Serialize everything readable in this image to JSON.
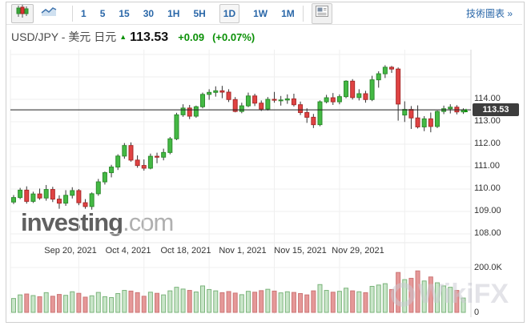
{
  "toolbar": {
    "chart_type_buttons": [
      {
        "icon": "candlestick-icon",
        "selected": true
      },
      {
        "icon": "line-chart-icon",
        "selected": false
      }
    ],
    "timeframes": [
      {
        "label": "1",
        "selected": false
      },
      {
        "label": "5",
        "selected": false
      },
      {
        "label": "15",
        "selected": false
      },
      {
        "label": "30",
        "selected": false
      },
      {
        "label": "1H",
        "selected": false
      },
      {
        "label": "5H",
        "selected": false
      },
      {
        "label": "1D",
        "selected": true
      },
      {
        "label": "1W",
        "selected": false
      },
      {
        "label": "1M",
        "selected": false
      }
    ],
    "news_icon": "news-panel-icon",
    "link_label": "技術圖表 »"
  },
  "header": {
    "symbol": "USD/JPY - 美元 日元",
    "direction": "up",
    "price": "113.53",
    "change": "+0.09",
    "change_pct": "(+0.07%)"
  },
  "watermarks": {
    "main_bold": "investing",
    "main_light": ".com",
    "corner": "WikiFX"
  },
  "chart_data": {
    "type": "candlestick",
    "symbol": "USD/JPY",
    "timeframe": "1D",
    "last_price": 113.53,
    "last_price_label": "113.53",
    "y_axis": {
      "ticks": [
        114,
        113,
        112,
        111,
        110,
        109,
        108
      ],
      "labels": [
        "114.00",
        "113.00",
        "112.00",
        "111.00",
        "110.00",
        "109.00",
        "108.00"
      ],
      "range_hint": [
        107.5,
        116.2
      ],
      "grid": true
    },
    "x_axis": {
      "ticks": [
        "Sep 20, 2021",
        "Oct 4, 2021",
        "Oct 18, 2021",
        "Nov 1, 2021",
        "Nov 15, 2021",
        "Nov 29, 2021"
      ]
    },
    "volume_axis": {
      "ticks": [
        {
          "label": "200.0K",
          "value": 200
        },
        {
          "label": "0",
          "value": 0
        }
      ]
    },
    "colors": {
      "up_fill": "#44b944",
      "up_stroke": "#2d8c2d",
      "down_fill": "#e04343",
      "down_stroke": "#aa2b2b",
      "wick": "#333333",
      "vol_up_fill": "#c9e5c9",
      "vol_up_stroke": "#7bb47b",
      "vol_down_fill": "#e59898",
      "vol_down_stroke": "#cc7676",
      "last_price_line": "#222222",
      "grid": "#efefef",
      "accent_blue": "#2a67a8",
      "accent_green": "#0a9006"
    },
    "candles": [
      [
        "Sep 6, 2021",
        109.42,
        109.73,
        109.33,
        109.62,
        62
      ],
      [
        "Sep 7, 2021",
        109.62,
        110.05,
        109.55,
        109.95,
        78
      ],
      [
        "Sep 8, 2021",
        109.95,
        110.12,
        109.35,
        109.45,
        82
      ],
      [
        "Sep 9, 2021",
        109.45,
        109.88,
        109.38,
        109.78,
        75
      ],
      [
        "Sep 10, 2021",
        109.78,
        110.02,
        109.52,
        109.6,
        70
      ],
      [
        "Sep 13, 2021",
        109.6,
        110.18,
        109.48,
        109.98,
        88
      ],
      [
        "Sep 14, 2021",
        109.98,
        110.1,
        109.42,
        109.55,
        72
      ],
      [
        "Sep 15, 2021",
        109.55,
        109.72,
        109.12,
        109.37,
        80
      ],
      [
        "Sep 16, 2021",
        109.37,
        109.95,
        109.25,
        109.72,
        76
      ],
      [
        "Sep 17, 2021",
        109.72,
        110.08,
        109.58,
        109.93,
        92
      ],
      [
        "Sep 20, 2021",
        109.93,
        110.0,
        109.28,
        109.39,
        85
      ],
      [
        "Sep 21, 2021",
        109.39,
        109.55,
        109.12,
        109.22,
        68
      ],
      [
        "Sep 22, 2021",
        109.22,
        109.85,
        109.08,
        109.79,
        74
      ],
      [
        "Sep 23, 2021",
        109.79,
        110.45,
        109.7,
        110.32,
        89
      ],
      [
        "Sep 24, 2021",
        110.32,
        110.78,
        110.2,
        110.73,
        70
      ],
      [
        "Sep 27, 2021",
        110.73,
        111.08,
        110.52,
        110.98,
        66
      ],
      [
        "Sep 28, 2021",
        110.98,
        111.55,
        110.85,
        111.47,
        84
      ],
      [
        "Sep 29, 2021",
        111.47,
        112.05,
        111.35,
        111.94,
        98
      ],
      [
        "Sep 30, 2021",
        111.94,
        112.08,
        111.22,
        111.29,
        95
      ],
      [
        "Oct 1, 2021",
        111.29,
        111.5,
        110.95,
        111.05,
        88
      ],
      [
        "Oct 4, 2021",
        111.05,
        111.32,
        110.82,
        110.93,
        72
      ],
      [
        "Oct 5, 2021",
        110.93,
        111.58,
        110.88,
        111.46,
        90
      ],
      [
        "Oct 6, 2021",
        111.46,
        111.62,
        111.15,
        111.42,
        85
      ],
      [
        "Oct 7, 2021",
        111.42,
        111.8,
        111.28,
        111.63,
        78
      ],
      [
        "Oct 8, 2021",
        111.63,
        112.32,
        111.55,
        112.24,
        96
      ],
      [
        "Oct 11, 2021",
        112.24,
        113.4,
        112.18,
        113.31,
        112
      ],
      [
        "Oct 12, 2021",
        113.31,
        113.78,
        113.22,
        113.61,
        104
      ],
      [
        "Oct 13, 2021",
        113.61,
        113.75,
        113.12,
        113.25,
        98
      ],
      [
        "Oct 14, 2021",
        113.25,
        113.72,
        113.18,
        113.67,
        91
      ],
      [
        "Oct 15, 2021",
        113.67,
        114.3,
        113.6,
        114.22,
        118
      ],
      [
        "Oct 18, 2021",
        114.22,
        114.45,
        113.98,
        114.31,
        102
      ],
      [
        "Oct 19, 2021",
        114.31,
        114.58,
        114.12,
        114.38,
        96
      ],
      [
        "Oct 20, 2021",
        114.38,
        114.6,
        114.05,
        114.32,
        88
      ],
      [
        "Oct 21, 2021",
        114.32,
        114.45,
        113.88,
        113.99,
        93
      ],
      [
        "Oct 22, 2021",
        113.99,
        114.1,
        113.42,
        113.46,
        86
      ],
      [
        "Oct 25, 2021",
        113.46,
        113.85,
        113.38,
        113.71,
        79
      ],
      [
        "Oct 26, 2021",
        113.71,
        114.3,
        113.65,
        114.15,
        94
      ],
      [
        "Oct 27, 2021",
        114.15,
        114.25,
        113.7,
        113.83,
        90
      ],
      [
        "Oct 28, 2021",
        113.83,
        113.95,
        113.48,
        113.57,
        97
      ],
      [
        "Oct 29, 2021",
        113.57,
        114.1,
        113.5,
        114.0,
        103
      ],
      [
        "Nov 1, 2021",
        114.0,
        114.33,
        113.85,
        113.96,
        95
      ],
      [
        "Nov 2, 2021",
        113.96,
        114.15,
        113.72,
        113.97,
        87
      ],
      [
        "Nov 3, 2021",
        113.97,
        114.22,
        113.8,
        114.02,
        92
      ],
      [
        "Nov 4, 2021",
        114.02,
        114.25,
        113.68,
        113.76,
        89
      ],
      [
        "Nov 5, 2021",
        113.76,
        113.9,
        113.3,
        113.41,
        84
      ],
      [
        "Nov 8, 2021",
        113.41,
        113.6,
        112.95,
        113.2,
        78
      ],
      [
        "Nov 9, 2021",
        113.2,
        113.35,
        112.72,
        112.87,
        96
      ],
      [
        "Nov 10, 2021",
        112.87,
        113.95,
        112.8,
        113.89,
        124
      ],
      [
        "Nov 11, 2021",
        113.89,
        114.2,
        113.82,
        114.07,
        98
      ],
      [
        "Nov 12, 2021",
        114.07,
        114.28,
        113.75,
        113.89,
        90
      ],
      [
        "Nov 15, 2021",
        113.89,
        114.22,
        113.78,
        114.12,
        94
      ],
      [
        "Nov 16, 2021",
        114.12,
        114.85,
        114.05,
        114.81,
        108
      ],
      [
        "Nov 17, 2021",
        114.81,
        114.9,
        113.99,
        114.08,
        96
      ],
      [
        "Nov 18, 2021",
        114.08,
        114.45,
        113.95,
        114.25,
        92
      ],
      [
        "Nov 19, 2021",
        114.25,
        114.38,
        113.85,
        113.99,
        88
      ],
      [
        "Nov 22, 2021",
        113.99,
        115.05,
        113.92,
        114.87,
        116
      ],
      [
        "Nov 23, 2021",
        114.87,
        115.25,
        114.52,
        115.14,
        122
      ],
      [
        "Nov 24, 2021",
        115.14,
        115.52,
        114.95,
        115.43,
        128
      ],
      [
        "Nov 25, 2021",
        115.43,
        115.49,
        115.18,
        115.35,
        102
      ],
      [
        "Nov 26, 2021",
        115.35,
        115.42,
        113.05,
        113.79,
        178
      ],
      [
        "Nov 29, 2021",
        113.3,
        113.91,
        112.99,
        113.55,
        146
      ],
      [
        "Nov 30, 2021",
        113.55,
        113.7,
        112.68,
        113.17,
        152
      ],
      [
        "Dec 1, 2021",
        113.17,
        113.73,
        112.7,
        112.77,
        185
      ],
      [
        "Dec 2, 2021",
        112.77,
        113.25,
        112.58,
        113.13,
        140
      ],
      [
        "Dec 3, 2021",
        113.13,
        113.41,
        112.53,
        112.79,
        158
      ],
      [
        "Dec 6, 2021",
        112.79,
        113.5,
        112.72,
        113.46,
        132
      ],
      [
        "Dec 7, 2021",
        113.46,
        113.72,
        113.34,
        113.58,
        118
      ],
      [
        "Dec 8, 2021",
        113.58,
        113.78,
        113.37,
        113.65,
        112
      ],
      [
        "Dec 9, 2021",
        113.65,
        113.74,
        113.33,
        113.44,
        98
      ],
      [
        "Dec 10, 2021",
        113.44,
        113.6,
        113.35,
        113.53,
        64
      ]
    ]
  }
}
